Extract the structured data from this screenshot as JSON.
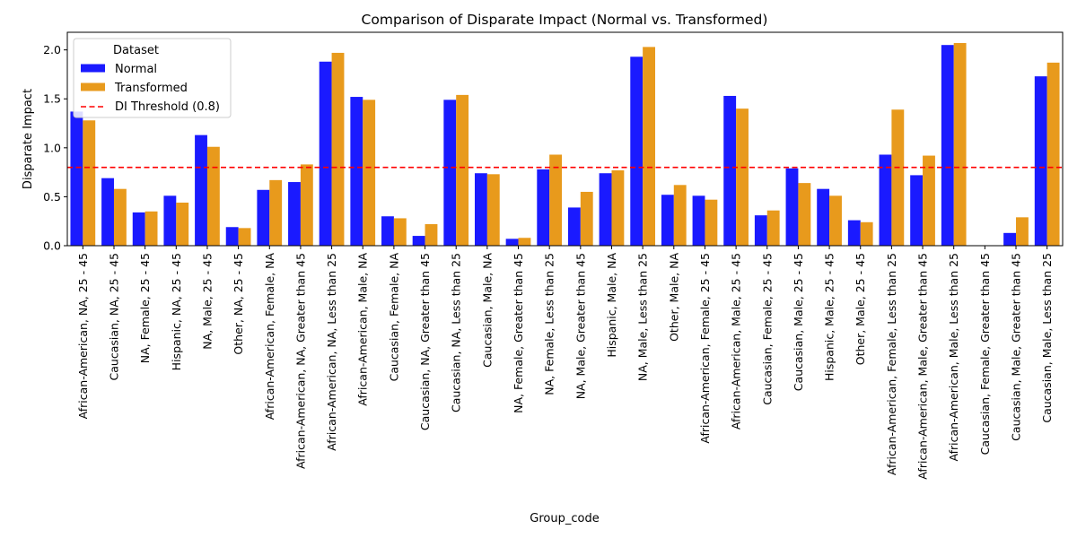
{
  "chart_data": {
    "type": "bar",
    "title": "Comparison of Disparate Impact (Normal vs. Transformed)",
    "xlabel": "Group_code",
    "ylabel": "Disparate Impact",
    "ylim": [
      0,
      2.18
    ],
    "yticks": [
      0.0,
      0.5,
      1.0,
      1.5,
      2.0
    ],
    "ytick_labels": [
      "0.0",
      "0.5",
      "1.0",
      "1.5",
      "2.0"
    ],
    "grid": false,
    "legend": {
      "title": "Dataset",
      "placement": "upper-left",
      "entries": [
        "Normal",
        "Transformed",
        "DI Threshold (0.8)"
      ]
    },
    "threshold": {
      "name": "DI Threshold (0.8)",
      "value": 0.8,
      "color": "#ff0000",
      "style": "dashed"
    },
    "categories": [
      "African-American, NA, 25 - 45",
      "Caucasian, NA, 25 - 45",
      "NA, Female, 25 - 45",
      "Hispanic, NA, 25 - 45",
      "NA, Male, 25 - 45",
      "Other, NA, 25 - 45",
      "African-American, Female, NA",
      "African-American, NA, Greater than 45",
      "African-American, NA, Less than 25",
      "African-American, Male, NA",
      "Caucasian, Female, NA",
      "Caucasian, NA, Greater than 45",
      "Caucasian, NA, Less than 25",
      "Caucasian, Male, NA",
      "NA, Female, Greater than 45",
      "NA, Female, Less than 25",
      "NA, Male, Greater than 45",
      "Hispanic, Male, NA",
      "NA, Male, Less than 25",
      "Other, Male, NA",
      "African-American, Female, 25 - 45",
      "African-American, Male, 25 - 45",
      "Caucasian, Female, 25 - 45",
      "Caucasian, Male, 25 - 45",
      "Hispanic, Male, 25 - 45",
      "Other, Male, 25 - 45",
      "African-American, Female, Less than 25",
      "African-American, Male, Greater than 45",
      "African-American, Male, Less than 25",
      "Caucasian, Female, Greater than 45",
      "Caucasian, Male, Greater than 45",
      "Caucasian, Male, Less than 25"
    ],
    "series": [
      {
        "name": "Normal",
        "color": "#1a1aff",
        "values": [
          1.37,
          0.69,
          0.34,
          0.51,
          1.13,
          0.19,
          0.57,
          0.65,
          1.88,
          1.52,
          0.3,
          0.1,
          1.49,
          0.74,
          0.07,
          0.78,
          0.39,
          0.74,
          1.93,
          0.52,
          0.51,
          1.53,
          0.31,
          0.79,
          0.58,
          0.26,
          0.93,
          0.72,
          2.05,
          0.0,
          0.13,
          1.73
        ]
      },
      {
        "name": "Transformed",
        "color": "#e89a1c",
        "values": [
          1.28,
          0.58,
          0.35,
          0.44,
          1.01,
          0.18,
          0.67,
          0.83,
          1.97,
          1.49,
          0.28,
          0.22,
          1.54,
          0.73,
          0.08,
          0.93,
          0.55,
          0.77,
          2.03,
          0.62,
          0.47,
          1.4,
          0.36,
          0.64,
          0.51,
          0.24,
          1.39,
          0.92,
          2.07,
          0.0,
          0.29,
          1.87
        ]
      }
    ]
  }
}
